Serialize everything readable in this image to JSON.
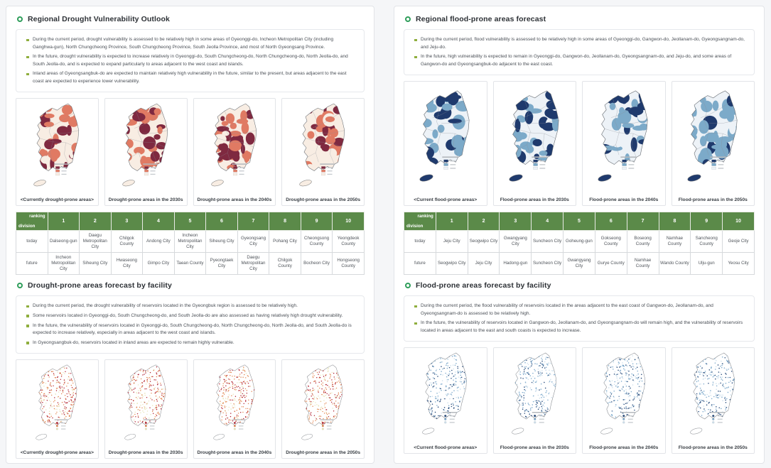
{
  "theme": {
    "page_bg": "#f5f6f8",
    "panel_bg": "#ffffff",
    "accent_ring_green": "#2f9e5b",
    "bullet_square_green": "#8fae3d",
    "table_header_green": "#5b8a49",
    "border_gray": "#e2e4e8"
  },
  "map_palettes": {
    "choropleth-red": {
      "colors": [
        "#7f2940",
        "#e07a63",
        "#f8ede3"
      ],
      "jeju": "light"
    },
    "dots-red": {
      "colors": [
        "#b02030",
        "#e2854f",
        "#e8e4b8"
      ],
      "jeju": "none"
    },
    "choropleth-blue": {
      "colors": [
        "#1f3a6d",
        "#7caac9",
        "#edf2f7"
      ],
      "jeju": "dark"
    },
    "dots-blue": {
      "colors": [
        "#2a4d7d",
        "#7fabcd",
        "#ccdeeb"
      ],
      "jeju": "none"
    }
  },
  "left_panel": {
    "section1": {
      "title": "Regional Drought Vulnerability Outlook",
      "bullets": [
        "During the current period, drought vulnerability is assessed to be relatively high in some areas of Gyeonggi-do, Incheon Metropolitan City (including Ganghwa-gun), North Chungcheong Province, South Chungcheong Province, South Jeolla Province, and most of North Gyeongsang Province.",
        "In the future, drought vulnerability is expected to increase relatively in Gyeonggi-do, South Chungcheong-do, North Chungcheong-do, North Jeolla-do, and South Jeolla-do, and is expected to expand particularly to areas adjacent to the west coast and islands.",
        "Inland areas of Gyeongsangbuk-do are expected to maintain relatively high vulnerability in the future, similar to the present, but areas adjacent to the east coast are expected to experience lower vulnerability."
      ],
      "map_captions": [
        "<Currently drought-prone areas>",
        "Drought-prone areas in the 2030s",
        "Drought-prone areas in the 2040s",
        "Drought-prone areas in the 2050s"
      ],
      "table": {
        "corner_top": "ranking",
        "corner_bottom": "division",
        "ranks": [
          "1",
          "2",
          "3",
          "4",
          "5",
          "6",
          "7",
          "8",
          "9",
          "10"
        ],
        "row_today_label": "today",
        "row_future_label": "future",
        "today": [
          "Dalseong-gun",
          "Daegu Metropolitan City",
          "Chilgok County",
          "Andong City",
          "Incheon Metropolitan City",
          "Siheung City",
          "Gyeongsang City",
          "Pohang City",
          "Cheongsong County",
          "Yeongdeok County"
        ],
        "future": [
          "Incheon Metropolitan City",
          "Siheung City",
          "Hwaseong City",
          "Gimpo City",
          "Taean County",
          "Pyeongtaek City",
          "Daegu Metropolitan City",
          "Chilgok County",
          "Bocheon City",
          "Hongseong County"
        ]
      }
    },
    "section2": {
      "title": "Drought-prone areas forecast by facility",
      "bullets": [
        "During the current period, the drought vulnerability of reservoirs located in the Gyeongbuk region is assessed to be relatively high.",
        "Some reservoirs located in Gyeonggi-do, South Chungcheong-do, and South Jeolla-do are also assessed as having relatively high drought vulnerability.",
        "In the future, the vulnerability of reservoirs located in Gyeonggi-do, South Chungcheong-do, North Chungcheong-do, North Jeolla-do, and South Jeolla-do is expected to increase relatively, especially in areas adjacent to the west coast and islands.",
        "In Gyeongsangbuk-do, reservoirs located in inland areas are expected to remain highly vulnerable."
      ],
      "map_captions": [
        "<Currently drought-prone areas>",
        "Drought-prone areas in the 2030s",
        "Drought-prone areas in the 2040s",
        "Drought-prone areas in the 2050s"
      ]
    }
  },
  "right_panel": {
    "section1": {
      "title": "Regional flood-prone areas forecast",
      "bullets": [
        "During the current period, flood vulnerability is assessed to be relatively high in some areas of Gyeonggi-do, Gangwon-do, Jeollanam-do, Gyeongsangnam-do, and Jeju-do.",
        "In the future, high vulnerability is expected to remain in Gyeonggi-do, Gangwon-do, Jeollanam-do, Gyeongsangnam-do, and Jeju-do, and some areas of Gangwon-do and Gyeongsangbuk-do adjacent to the east coast."
      ],
      "map_captions": [
        "<Current flood-prone areas>",
        "Flood-prone areas in the 2030s",
        "Flood-prone areas in the 2040s",
        "Flood-prone areas in the 2050s"
      ],
      "table": {
        "corner_top": "ranking",
        "corner_bottom": "division",
        "ranks": [
          "1",
          "2",
          "3",
          "4",
          "5",
          "6",
          "7",
          "8",
          "9",
          "10"
        ],
        "row_today_label": "today",
        "row_future_label": "future",
        "today": [
          "Jeju City",
          "Seogwipo City",
          "Gwangyang City",
          "Suncheon City",
          "Goheung-gun",
          "Gokseong County",
          "Boseong County",
          "Namhae County",
          "Sancheong County",
          "Geoje City"
        ],
        "future": [
          "Seogwipo City",
          "Jeju City",
          "Hadong-gun",
          "Suncheon City",
          "Gwangyang City",
          "Gurye County",
          "Namhae County",
          "Wando County",
          "Ulju-gun",
          "Yeosu City"
        ]
      }
    },
    "section2": {
      "title": "Flood-prone areas forecast by facility",
      "bullets": [
        "During the current period, the flood vulnerability of reservoirs located in the areas adjacent to the east coast of Gangwon-do, Jeollanam-do, and Gyeongsangnam-do is assessed to be relatively high.",
        "In the future, the vulnerability of reservoirs located in Gangwon-do, Jeollanam-do, and Gyeongsangnam-do will remain high, and the vulnerability of reservoirs located in areas adjacent to the east and south coasts is expected to increase."
      ],
      "map_captions": [
        "<Current flood-prone areas>",
        "Flood-prone areas in the 2030s",
        "Flood-prone areas in the 2040s",
        "Flood-prone areas in the 2050s"
      ]
    }
  }
}
